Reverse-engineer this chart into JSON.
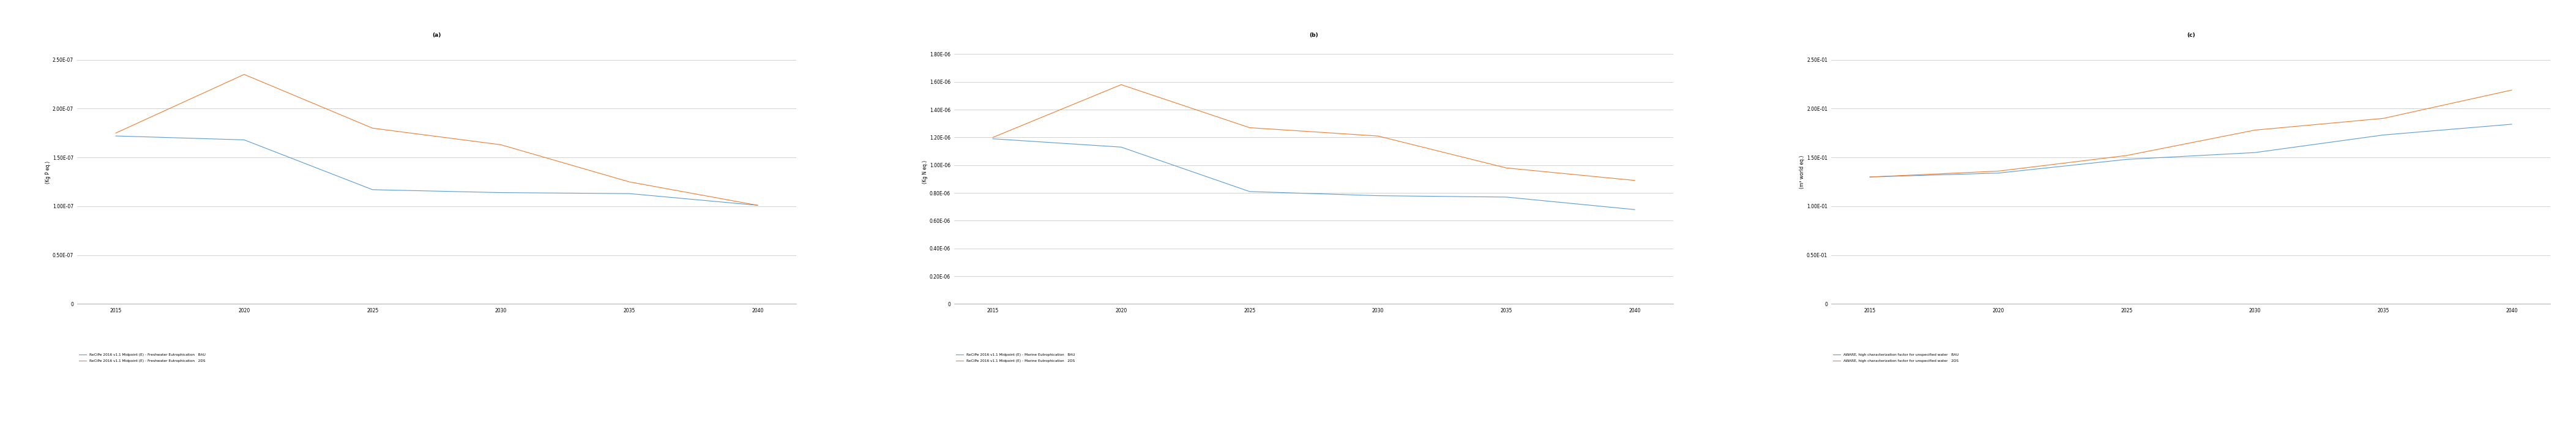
{
  "x": [
    2015,
    2020,
    2025,
    2030,
    2035,
    2040
  ],
  "a_bau": [
    1.72e-07,
    1.68e-07,
    1.17e-07,
    1.14e-07,
    1.13e-07,
    1.01e-07
  ],
  "a_2ds": [
    1.75e-07,
    2.35e-07,
    1.8e-07,
    1.63e-07,
    1.25e-07,
    1.01e-07
  ],
  "a_ylabel": "(Kg P eq.)",
  "a_title": "(a)",
  "a_yticks": [
    0,
    5e-08,
    1e-07,
    1.5e-07,
    2e-07,
    2.5e-07
  ],
  "a_ylim": [
    0,
    2.7e-07
  ],
  "a_legend_bau": "ReCiPe 2016 v1.1 Midpoint (E) - Freshwater Eutrophication   BAU",
  "a_legend_2ds": "ReCiPe 2016 v1.1 Midpoint (E) - Freshwater Eutrophication   2DS",
  "b_bau": [
    1.19e-06,
    1.13e-06,
    8.1e-07,
    7.8e-07,
    7.7e-07,
    6.8e-07
  ],
  "b_2ds": [
    1.2e-06,
    1.58e-06,
    1.27e-06,
    1.21e-06,
    9.8e-07,
    8.9e-07
  ],
  "b_ylabel": "(Kg N eq.)",
  "b_title": "(b)",
  "b_yticks": [
    0,
    2e-07,
    4e-07,
    6e-07,
    8e-07,
    1e-06,
    1.2e-06,
    1.4e-06,
    1.6e-06,
    1.8e-06
  ],
  "b_ylim": [
    0,
    1.9e-06
  ],
  "b_legend_bau": "ReCiPe 2016 v1.1 Midpoint (E) - Marine Eutrophication   BAU",
  "b_legend_2ds": "ReCiPe 2016 v1.1 Midpoint (E) - Marine Eutrophication   2DS",
  "c_bau": [
    0.13,
    0.134,
    0.148,
    0.155,
    0.173,
    0.184
  ],
  "c_2ds": [
    0.13,
    0.136,
    0.152,
    0.178,
    0.19,
    0.219
  ],
  "c_ylabel": "(m³ world eq.)",
  "c_title": "(c)",
  "c_yticks": [
    0,
    0.05,
    0.1,
    0.15,
    0.2,
    0.25
  ],
  "c_ylim": [
    0,
    0.27
  ],
  "c_legend_bau": "AWARE, high characterization factor for unspecified water   BAU",
  "c_legend_2ds": "AWARE, high characterization factor for unspecified water   2DS",
  "color_bau": "#5B9BD5",
  "color_2ds": "#ED7D31",
  "line_width": 0.8,
  "bg_color": "#FFFFFF",
  "grid_color": "#C0C0C0",
  "xticks": [
    2015,
    2020,
    2025,
    2030,
    2035,
    2040
  ],
  "tick_fontsize": 5.5,
  "label_fontsize": 5.5,
  "title_fontsize": 6.5,
  "legend_fontsize": 4.2
}
